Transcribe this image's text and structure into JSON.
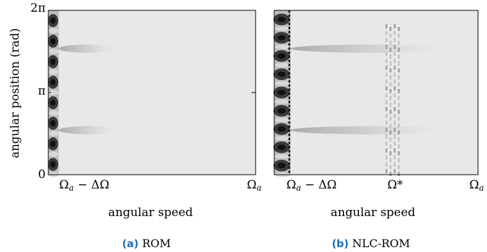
{
  "chart_data": [
    {
      "type": "heatmap",
      "panel": "a",
      "caption_tag": "(a)",
      "caption_text": "ROM",
      "xlabel": "angular speed",
      "ylabel": "angular position (rad)",
      "ytick_labels": [
        "0",
        "π",
        "2π"
      ],
      "yticks": [
        0,
        3.14159,
        6.28318
      ],
      "ylim": [
        0,
        6.28318
      ],
      "xtick_labels": [
        {
          "main": "Ω",
          "sub": "a",
          "tail": " − ΔΩ"
        },
        {
          "main": "Ω",
          "sub": "a",
          "tail": ""
        }
      ],
      "xlim": [
        0,
        1
      ],
      "xticks": [
        0,
        1
      ],
      "background_color": "#e8e8e8",
      "features": [
        {
          "kind": "dark_band",
          "x_range": [
            0,
            0.05
          ],
          "stripes": 8
        },
        {
          "kind": "faint_streak",
          "y": 1.7,
          "x_range": [
            0.05,
            0.35
          ]
        },
        {
          "kind": "faint_streak",
          "y": 4.82,
          "x_range": [
            0.05,
            0.35
          ]
        }
      ]
    },
    {
      "type": "heatmap",
      "panel": "b",
      "caption_tag": "(b)",
      "caption_text": "NLC-ROM",
      "xlabel": "angular speed",
      "ylabel": "",
      "ytick_labels": [],
      "ylim": [
        0,
        6.28318
      ],
      "xtick_labels": [
        {
          "main": "Ω",
          "sub": "a",
          "tail": " − ΔΩ"
        },
        {
          "main": "Ω*",
          "sub": "",
          "tail": ""
        },
        {
          "main": "Ω",
          "sub": "a",
          "tail": ""
        }
      ],
      "xlim": [
        0,
        1
      ],
      "xticks": [
        0,
        0.58,
        1
      ],
      "background_color": "#e8e8e8",
      "features": [
        {
          "kind": "dark_band",
          "x_range": [
            0,
            0.08
          ],
          "stripes": 9
        },
        {
          "kind": "faint_streak",
          "y": 1.7,
          "x_range": [
            0.08,
            0.9
          ]
        },
        {
          "kind": "faint_streak",
          "y": 4.82,
          "x_range": [
            0.08,
            0.9
          ]
        },
        {
          "kind": "vertical_dashes",
          "x": 0.58
        }
      ]
    }
  ]
}
